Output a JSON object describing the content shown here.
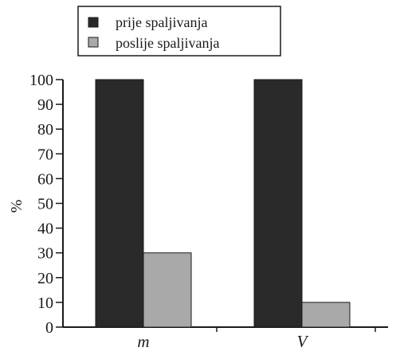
{
  "chart_data": {
    "type": "bar",
    "categories": [
      "m",
      "V"
    ],
    "series": [
      {
        "name": "prije spaljivanja",
        "values": [
          100,
          100
        ],
        "color": "#2a2a2a"
      },
      {
        "name": "poslije spaljivanja",
        "values": [
          30,
          10
        ],
        "color": "#a9a9a9"
      }
    ],
    "xlabel": "",
    "ylabel": "%",
    "ylim": [
      0,
      100
    ],
    "yticks": [
      0,
      10,
      20,
      30,
      40,
      50,
      60,
      70,
      80,
      90,
      100
    ],
    "grid": false,
    "legend_position": "top"
  }
}
